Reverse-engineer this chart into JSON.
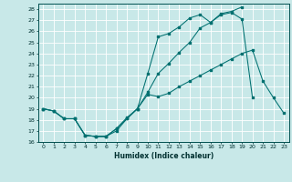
{
  "bg_color": "#c8e8e8",
  "grid_color": "#ffffff",
  "line_color": "#007070",
  "xlabel": "Humidex (Indice chaleur)",
  "ylim": [
    16,
    28.5
  ],
  "xlim": [
    -0.5,
    23.5
  ],
  "yticks": [
    16,
    17,
    18,
    19,
    20,
    21,
    22,
    23,
    24,
    25,
    26,
    27,
    28
  ],
  "xticks": [
    0,
    1,
    2,
    3,
    4,
    5,
    6,
    7,
    8,
    9,
    10,
    11,
    12,
    13,
    14,
    15,
    16,
    17,
    18,
    19,
    20,
    21,
    22,
    23
  ],
  "line1_x": [
    0,
    1,
    2,
    3,
    4,
    5,
    6,
    7,
    8,
    9,
    10,
    11,
    12,
    13,
    14,
    15,
    16,
    17,
    18,
    19,
    20,
    21,
    22,
    23
  ],
  "line1_y": [
    19,
    18.8,
    18.1,
    18.1,
    16.6,
    16.5,
    16.5,
    17.2,
    18.1,
    19.0,
    20.3,
    20.1,
    20.4,
    21.0,
    21.5,
    22.0,
    22.5,
    23.0,
    23.5,
    24.0,
    24.3,
    21.5,
    20.0,
    18.6
  ],
  "line2_x": [
    0,
    1,
    2,
    3,
    4,
    5,
    6,
    7,
    8,
    9,
    10,
    11,
    12,
    13,
    14,
    15,
    16,
    17,
    18,
    19,
    20
  ],
  "line2_y": [
    19,
    18.8,
    18.1,
    18.1,
    16.6,
    16.5,
    16.5,
    17.0,
    18.1,
    19.0,
    22.2,
    25.5,
    25.8,
    26.4,
    27.2,
    27.5,
    26.8,
    27.5,
    27.7,
    27.1,
    20.0
  ],
  "line3_x": [
    0,
    1,
    2,
    3,
    4,
    5,
    6,
    7,
    8,
    9,
    10,
    11,
    12,
    13,
    14,
    15,
    16,
    17,
    18,
    19
  ],
  "line3_y": [
    19,
    18.8,
    18.1,
    18.1,
    16.6,
    16.5,
    16.5,
    17.2,
    18.2,
    19.0,
    20.5,
    22.2,
    23.1,
    24.1,
    25.0,
    26.3,
    26.8,
    27.6,
    27.8,
    28.2
  ]
}
